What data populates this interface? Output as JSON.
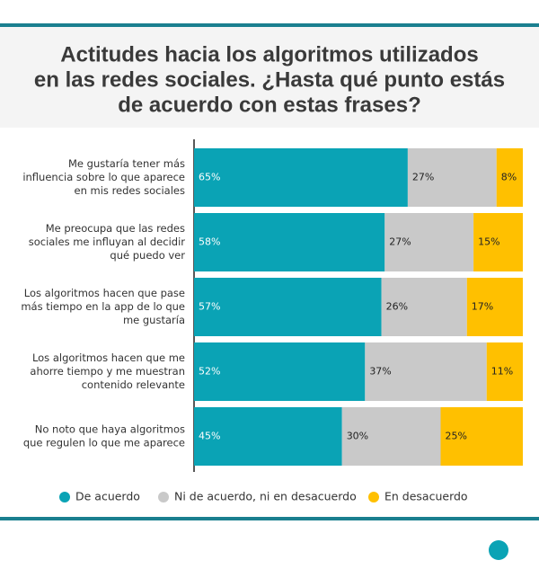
{
  "chart_data": {
    "type": "stacked-bar-horizontal",
    "title": [
      "Actitudes hacia los algoritmos utilizados",
      "en las redes sociales. ¿Hasta qué punto estás",
      "de acuerdo con estas frases?"
    ],
    "categories": [
      [
        "Me gustaría tener más",
        "influencia sobre lo que aparece",
        "en mis redes sociales"
      ],
      [
        "Me preocupa que las redes",
        "sociales me influyan al decidir",
        "qué puedo ver"
      ],
      [
        "Los algoritmos hacen que pase",
        "más tiempo en la app de lo que",
        "me gustaría"
      ],
      [
        "Los algoritmos hacen que me",
        "ahorre tiempo y me muestran",
        "contenido relevante"
      ],
      [
        "No noto que haya algoritmos",
        "que regulen lo que me aparece"
      ]
    ],
    "series": [
      {
        "name": "De acuerdo",
        "color": "#0aa3b5",
        "label_color": "#ffffff",
        "values": [
          65,
          58,
          57,
          52,
          45
        ],
        "value_labels": [
          "65%",
          "58%",
          "57%",
          "52%",
          "45%"
        ]
      },
      {
        "name": "Ni de acuerdo, ni en desacuerdo",
        "color": "#c9c9c9",
        "label_color": "#222222",
        "values": [
          27,
          27,
          26,
          37,
          30
        ],
        "value_labels": [
          "27%",
          "27%",
          "26%",
          "37%",
          "30%"
        ]
      },
      {
        "name": "En desacuerdo",
        "color": "#ffc000",
        "label_color": "#222222",
        "values": [
          8,
          15,
          17,
          11,
          25
        ],
        "value_labels": [
          "8%",
          "15%",
          "17%",
          "11%",
          "25%"
        ]
      }
    ],
    "xlim": [
      0,
      100
    ],
    "logo": "ocu"
  }
}
